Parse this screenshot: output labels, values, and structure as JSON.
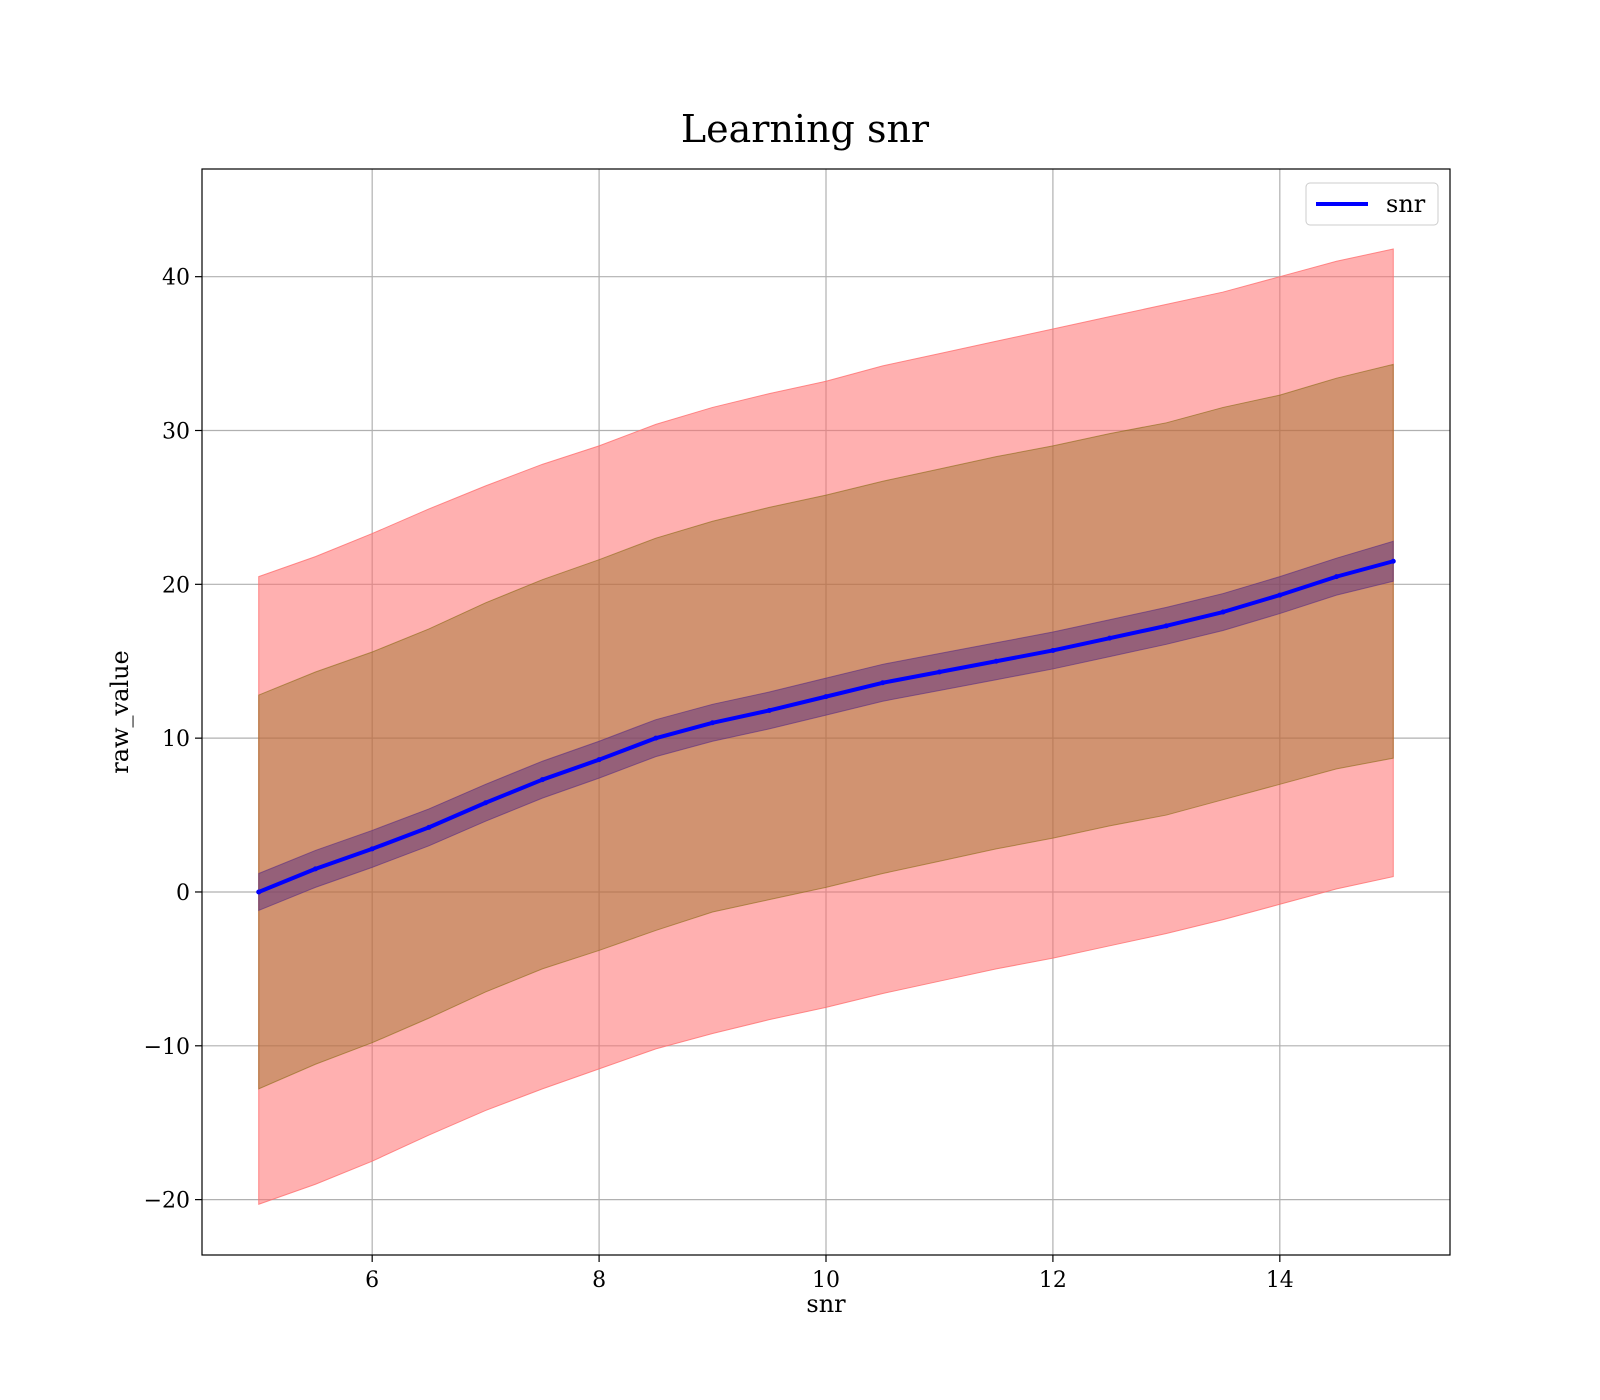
{
  "chart_data": {
    "type": "line",
    "title": "Learning snr",
    "xlabel": "snr",
    "ylabel": "raw_value",
    "xlim": [
      4.5,
      15.5
    ],
    "ylim": [
      -23.6,
      47.0
    ],
    "xticks": [
      6,
      8,
      10,
      12,
      14
    ],
    "xtick_labels": [
      "6",
      "8",
      "10",
      "12",
      "14"
    ],
    "yticks": [
      -20,
      -10,
      0,
      10,
      20,
      30,
      40
    ],
    "ytick_labels": [
      "−20",
      "−10",
      "0",
      "10",
      "20",
      "30",
      "40"
    ],
    "grid": true,
    "legend": {
      "position": "top-right",
      "entries": [
        "snr"
      ]
    },
    "colors": {
      "line": "#0000ff",
      "outer_band": "#ff6f6f",
      "middle_band": "#8b6914",
      "inner_band": "#5a2d82",
      "grid": "#b0b0b0"
    },
    "series": [
      {
        "name": "snr",
        "x": [
          5.0,
          5.5,
          6.0,
          6.5,
          7.0,
          7.5,
          8.0,
          8.5,
          9.0,
          9.5,
          10.0,
          10.5,
          11.0,
          11.5,
          12.0,
          12.5,
          13.0,
          13.5,
          14.0,
          14.5,
          15.0
        ],
        "mean": [
          0.0,
          1.5,
          2.8,
          4.2,
          5.8,
          7.3,
          8.6,
          10.0,
          11.0,
          11.8,
          12.7,
          13.6,
          14.3,
          15.0,
          15.7,
          16.5,
          17.3,
          18.2,
          19.3,
          20.5,
          21.5
        ],
        "inner_lower": [
          -1.2,
          0.3,
          1.6,
          3.0,
          4.6,
          6.1,
          7.4,
          8.8,
          9.8,
          10.6,
          11.5,
          12.4,
          13.1,
          13.8,
          14.5,
          15.3,
          16.1,
          17.0,
          18.1,
          19.3,
          20.2
        ],
        "inner_upper": [
          1.2,
          2.7,
          4.0,
          5.4,
          7.0,
          8.5,
          9.8,
          11.2,
          12.2,
          13.0,
          13.9,
          14.8,
          15.5,
          16.2,
          16.9,
          17.7,
          18.5,
          19.4,
          20.5,
          21.7,
          22.8
        ],
        "middle_lower": [
          -12.8,
          -11.2,
          -9.8,
          -8.2,
          -6.5,
          -5.0,
          -3.8,
          -2.5,
          -1.3,
          -0.5,
          0.3,
          1.2,
          2.0,
          2.8,
          3.5,
          4.3,
          5.0,
          6.0,
          7.0,
          8.0,
          8.7
        ],
        "middle_upper": [
          12.8,
          14.3,
          15.6,
          17.1,
          18.8,
          20.3,
          21.6,
          23.0,
          24.1,
          25.0,
          25.8,
          26.7,
          27.5,
          28.3,
          29.0,
          29.8,
          30.5,
          31.5,
          32.3,
          33.4,
          34.3
        ],
        "outer_lower": [
          -20.3,
          -19.0,
          -17.5,
          -15.8,
          -14.2,
          -12.8,
          -11.5,
          -10.2,
          -9.2,
          -8.3,
          -7.5,
          -6.6,
          -5.8,
          -5.0,
          -4.3,
          -3.5,
          -2.7,
          -1.8,
          -0.8,
          0.2,
          1.0
        ],
        "outer_upper": [
          20.5,
          21.8,
          23.3,
          24.9,
          26.4,
          27.8,
          29.0,
          30.4,
          31.5,
          32.4,
          33.2,
          34.2,
          35.0,
          35.8,
          36.6,
          37.4,
          38.2,
          39.0,
          40.0,
          41.0,
          41.8
        ]
      }
    ]
  }
}
